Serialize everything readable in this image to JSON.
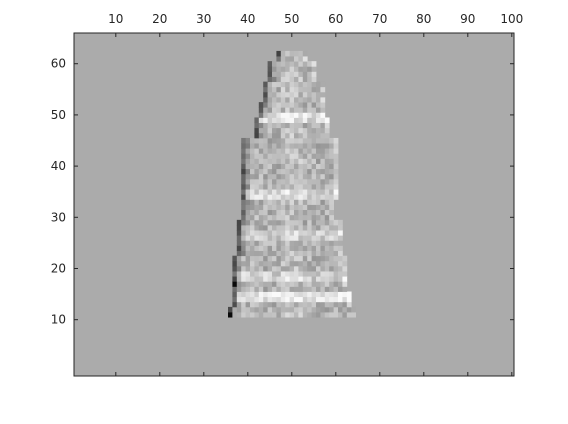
{
  "chart_data": {
    "type": "heatmap",
    "title": "",
    "xlabel": "",
    "ylabel": "",
    "xlim": [
      0.5,
      100.5
    ],
    "ylim": [
      -1,
      66
    ],
    "x_axis_location": "top",
    "y_direction": "normal",
    "x_ticks": [
      10,
      20,
      30,
      40,
      50,
      60,
      70,
      80,
      90,
      100
    ],
    "y_ticks": [
      10,
      20,
      30,
      40,
      50,
      60
    ],
    "colormap": "gray",
    "background_value": 0,
    "grid": false,
    "legend": "none",
    "colors": {
      "background": "#ababab",
      "axis": "#262626"
    },
    "image_content": "grayscale reconstruction of a seated statue figure; the figure spans roughly columns 35–64 and rows 11–62 of a 100×66 grid, displayed on a uniform mid-gray background",
    "figure_extent": {
      "x_range": [
        35,
        64
      ],
      "y_range": [
        11,
        62
      ]
    }
  }
}
